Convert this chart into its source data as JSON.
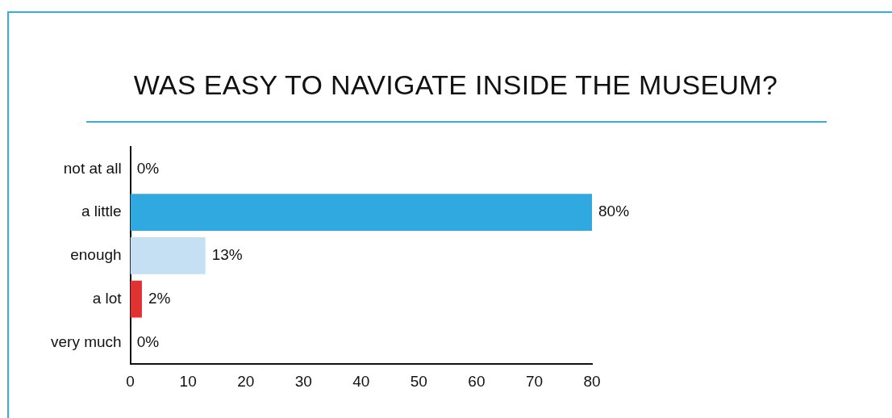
{
  "chart_data": {
    "type": "bar",
    "orientation": "horizontal",
    "title": "WAS EASY TO NAVIGATE INSIDE THE MUSEUM?",
    "categories": [
      "not at all",
      "a little",
      "enough",
      "a lot",
      "very much"
    ],
    "values": [
      0,
      80,
      13,
      2,
      0
    ],
    "colors": [
      "#2fa9df",
      "#2fa9df",
      "#c5dff3",
      "#e03232",
      "#2fa9df"
    ],
    "value_labels": [
      "0%",
      "80%",
      "13%",
      "2%",
      "0%"
    ],
    "xlim": [
      0,
      80
    ],
    "xticks": [
      0,
      10,
      20,
      30,
      40,
      50,
      60,
      70,
      80
    ],
    "grid": false,
    "legend": false
  }
}
